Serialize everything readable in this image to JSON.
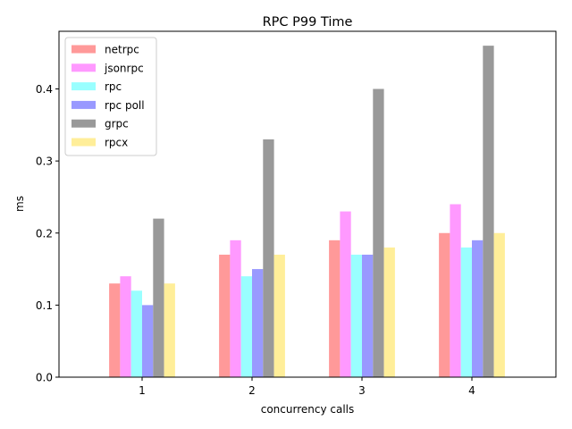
{
  "chart_data": {
    "type": "bar",
    "title": "RPC P99 Time",
    "xlabel": "concurrency calls",
    "ylabel": "ms",
    "categories": [
      "1",
      "2",
      "3",
      "4"
    ],
    "ylim": [
      0,
      0.48
    ],
    "yticks": [
      "0.0",
      "0.1",
      "0.2",
      "0.3",
      "0.4"
    ],
    "grid": false,
    "legend_position": "top-left",
    "series": [
      {
        "name": "netrpc",
        "color": "#ff9999",
        "values": [
          0.13,
          0.17,
          0.19,
          0.2
        ]
      },
      {
        "name": "jsonrpc",
        "color": "#ff99ff",
        "values": [
          0.14,
          0.19,
          0.23,
          0.24
        ]
      },
      {
        "name": "rpc",
        "color": "#99ffff",
        "values": [
          0.12,
          0.14,
          0.17,
          0.18
        ]
      },
      {
        "name": "rpc poll",
        "color": "#9999ff",
        "values": [
          0.1,
          0.15,
          0.17,
          0.19
        ]
      },
      {
        "name": "grpc",
        "color": "#999999",
        "values": [
          0.22,
          0.33,
          0.4,
          0.46
        ]
      },
      {
        "name": "rpcx",
        "color": "#ffee99",
        "values": [
          0.13,
          0.17,
          0.18,
          0.2
        ]
      }
    ]
  }
}
